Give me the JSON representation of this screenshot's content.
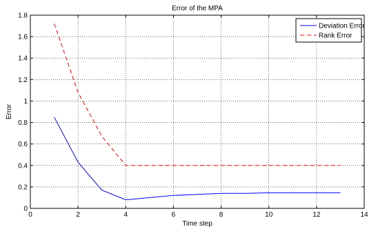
{
  "chart_data": {
    "type": "line",
    "title": "Error of the MPA",
    "xlabel": "Time step",
    "ylabel": "Error",
    "xlim": [
      0,
      14
    ],
    "ylim": [
      0,
      1.8
    ],
    "xticks": [
      0,
      2,
      4,
      6,
      8,
      10,
      12,
      14
    ],
    "yticks": [
      0,
      0.2,
      0.4,
      0.6,
      0.8,
      1,
      1.2,
      1.4,
      1.6,
      1.8
    ],
    "grid": true,
    "legend_position": "top-right",
    "series": [
      {
        "name": "Deviation Error",
        "color": "#0000ff",
        "style": "solid",
        "x": [
          1,
          2,
          3,
          4,
          5,
          6,
          7,
          8,
          9,
          10,
          11,
          12,
          13
        ],
        "y": [
          0.85,
          0.43,
          0.17,
          0.08,
          0.1,
          0.12,
          0.13,
          0.14,
          0.14,
          0.145,
          0.145,
          0.145,
          0.145
        ]
      },
      {
        "name": "Rank Error",
        "color": "#ff0000",
        "style": "dashed",
        "x": [
          1,
          2,
          3,
          4,
          5,
          6,
          7,
          8,
          9,
          10,
          11,
          12,
          13
        ],
        "y": [
          1.72,
          1.08,
          0.67,
          0.4,
          0.4,
          0.4,
          0.4,
          0.4,
          0.4,
          0.4,
          0.4,
          0.4,
          0.4
        ]
      }
    ]
  }
}
